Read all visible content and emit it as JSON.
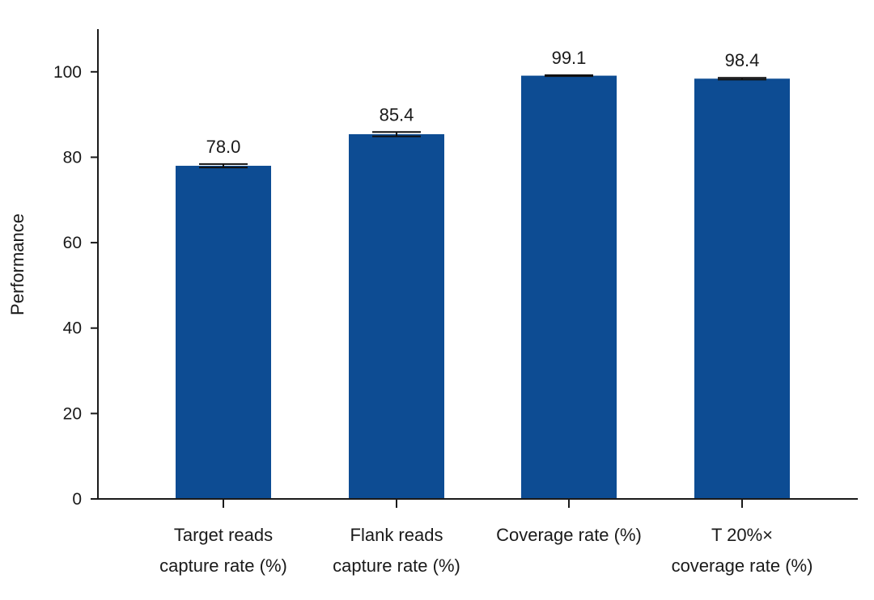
{
  "chart_data": {
    "type": "bar",
    "title": "",
    "xlabel": "",
    "ylabel": "Performance",
    "ylim": [
      0,
      110
    ],
    "yticks": [
      0,
      20,
      40,
      60,
      80,
      100
    ],
    "grid": false,
    "legend": "none",
    "bar_color": "#0d4c93",
    "error_bar_color": "#111111",
    "categories": [
      [
        "Target reads",
        "capture rate (%)"
      ],
      [
        "Flank reads",
        "capture rate (%)"
      ],
      [
        "Coverage rate (%)"
      ],
      [
        "T 20%×",
        "coverage rate (%)"
      ]
    ],
    "values": [
      78.0,
      85.4,
      99.1,
      98.4
    ],
    "error_low": [
      77.6,
      84.9,
      99.0,
      98.2
    ],
    "error_high": [
      78.4,
      85.9,
      99.2,
      98.6
    ],
    "data_labels": [
      "78.0",
      "85.4",
      "99.1",
      "98.4"
    ]
  }
}
